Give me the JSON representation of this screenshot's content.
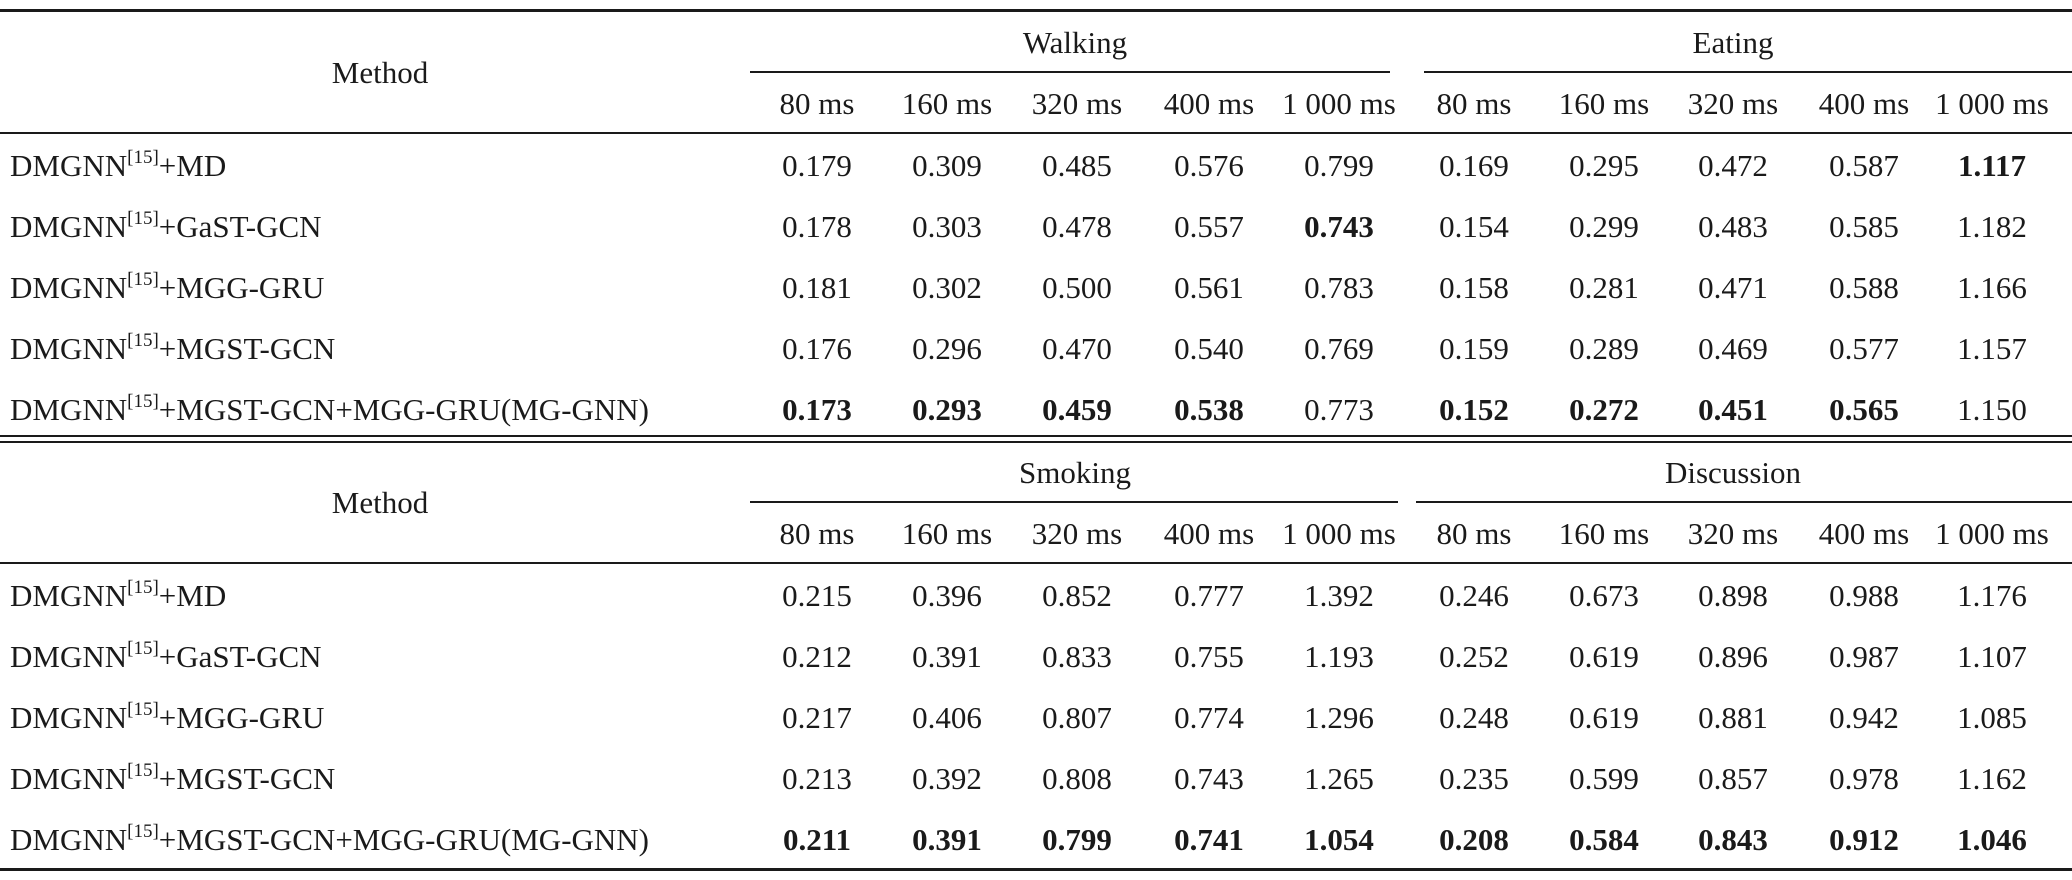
{
  "tables": [
    {
      "method_header": "Method",
      "groups": [
        {
          "name": "Walking",
          "cols": [
            "80 ms",
            "160 ms",
            "320 ms",
            "400 ms",
            "1 000 ms"
          ]
        },
        {
          "name": "Eating",
          "cols": [
            "80 ms",
            "160 ms",
            "320 ms",
            "400 ms",
            "1 000 ms"
          ]
        }
      ],
      "rows": [
        {
          "method": "DMGNN",
          "ref": "[15]",
          "suffix": "+MD",
          "values": [
            "0.179",
            "0.309",
            "0.485",
            "0.576",
            "0.799",
            "0.169",
            "0.295",
            "0.472",
            "0.587",
            "1.117"
          ],
          "bold": [
            false,
            false,
            false,
            false,
            false,
            false,
            false,
            false,
            false,
            true
          ]
        },
        {
          "method": "DMGNN",
          "ref": "[15]",
          "suffix": "+GaST-GCN",
          "values": [
            "0.178",
            "0.303",
            "0.478",
            "0.557",
            "0.743",
            "0.154",
            "0.299",
            "0.483",
            "0.585",
            "1.182"
          ],
          "bold": [
            false,
            false,
            false,
            false,
            true,
            false,
            false,
            false,
            false,
            false
          ]
        },
        {
          "method": "DMGNN",
          "ref": "[15]",
          "suffix": "+MGG-GRU",
          "values": [
            "0.181",
            "0.302",
            "0.500",
            "0.561",
            "0.783",
            "0.158",
            "0.281",
            "0.471",
            "0.588",
            "1.166"
          ],
          "bold": [
            false,
            false,
            false,
            false,
            false,
            false,
            false,
            false,
            false,
            false
          ]
        },
        {
          "method": "DMGNN",
          "ref": "[15]",
          "suffix": "+MGST-GCN",
          "values": [
            "0.176",
            "0.296",
            "0.470",
            "0.540",
            "0.769",
            "0.159",
            "0.289",
            "0.469",
            "0.577",
            "1.157"
          ],
          "bold": [
            false,
            false,
            false,
            false,
            false,
            false,
            false,
            false,
            false,
            false
          ]
        },
        {
          "method": "DMGNN",
          "ref": "[15]",
          "suffix": "+MGST-GCN+MGG-GRU(MG-GNN)",
          "values": [
            "0.173",
            "0.293",
            "0.459",
            "0.538",
            "0.773",
            "0.152",
            "0.272",
            "0.451",
            "0.565",
            "1.150"
          ],
          "bold": [
            true,
            true,
            true,
            true,
            false,
            true,
            true,
            true,
            true,
            false
          ]
        }
      ]
    },
    {
      "method_header": "Method",
      "groups": [
        {
          "name": "Smoking",
          "cols": [
            "80 ms",
            "160 ms",
            "320 ms",
            "400 ms",
            "1 000 ms"
          ]
        },
        {
          "name": "Discussion",
          "cols": [
            "80 ms",
            "160 ms",
            "320 ms",
            "400 ms",
            "1 000 ms"
          ]
        }
      ],
      "rows": [
        {
          "method": "DMGNN",
          "ref": "[15]",
          "suffix": "+MD",
          "values": [
            "0.215",
            "0.396",
            "0.852",
            "0.777",
            "1.392",
            "0.246",
            "0.673",
            "0.898",
            "0.988",
            "1.176"
          ],
          "bold": [
            false,
            false,
            false,
            false,
            false,
            false,
            false,
            false,
            false,
            false
          ]
        },
        {
          "method": "DMGNN",
          "ref": "[15]",
          "suffix": "+GaST-GCN",
          "values": [
            "0.212",
            "0.391",
            "0.833",
            "0.755",
            "1.193",
            "0.252",
            "0.619",
            "0.896",
            "0.987",
            "1.107"
          ],
          "bold": [
            false,
            false,
            false,
            false,
            false,
            false,
            false,
            false,
            false,
            false
          ]
        },
        {
          "method": "DMGNN",
          "ref": "[15]",
          "suffix": "+MGG-GRU",
          "values": [
            "0.217",
            "0.406",
            "0.807",
            "0.774",
            "1.296",
            "0.248",
            "0.619",
            "0.881",
            "0.942",
            "1.085"
          ],
          "bold": [
            false,
            false,
            false,
            false,
            false,
            false,
            false,
            false,
            false,
            false
          ]
        },
        {
          "method": "DMGNN",
          "ref": "[15]",
          "suffix": "+MGST-GCN",
          "values": [
            "0.213",
            "0.392",
            "0.808",
            "0.743",
            "1.265",
            "0.235",
            "0.599",
            "0.857",
            "0.978",
            "1.162"
          ],
          "bold": [
            false,
            false,
            false,
            false,
            false,
            false,
            false,
            false,
            false,
            false
          ]
        },
        {
          "method": "DMGNN",
          "ref": "[15]",
          "suffix": "+MGST-GCN+MGG-GRU(MG-GNN)",
          "values": [
            "0.211",
            "0.391",
            "0.799",
            "0.741",
            "1.054",
            "0.208",
            "0.584",
            "0.843",
            "0.912",
            "1.046"
          ],
          "bold": [
            true,
            true,
            true,
            true,
            true,
            true,
            true,
            true,
            true,
            true
          ]
        }
      ]
    }
  ]
}
